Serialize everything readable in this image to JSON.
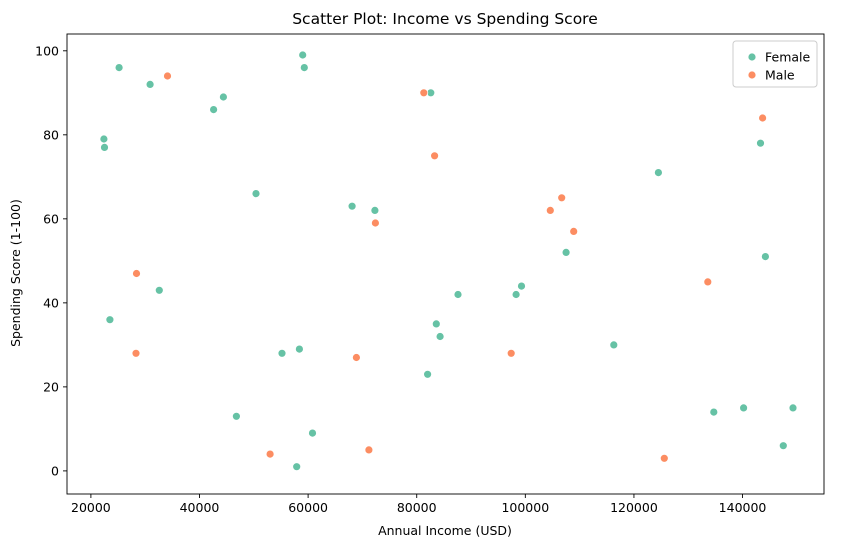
{
  "chart_data": {
    "type": "scatter",
    "title": "Scatter Plot: Income vs Spending Score",
    "xlabel": "Annual Income (USD)",
    "ylabel": "Spending Score (1-100)",
    "xlim": [
      15600,
      155000
    ],
    "ylim": [
      -5.5,
      104
    ],
    "xticks": [
      20000,
      40000,
      60000,
      80000,
      100000,
      120000,
      140000
    ],
    "xtick_labels": [
      "20000",
      "40000",
      "60000",
      "80000",
      "100000",
      "120000",
      "140000"
    ],
    "yticks": [
      0,
      20,
      40,
      60,
      80,
      100
    ],
    "ytick_labels": [
      "0",
      "20",
      "40",
      "60",
      "80",
      "100"
    ],
    "grid": false,
    "legend_position": "top-right",
    "series": [
      {
        "name": "Female",
        "color": "#66c2a5",
        "points": [
          [
            22400,
            79
          ],
          [
            22500,
            77
          ],
          [
            23500,
            36
          ],
          [
            25200,
            96
          ],
          [
            30900,
            92
          ],
          [
            32600,
            43
          ],
          [
            42600,
            86
          ],
          [
            44400,
            89
          ],
          [
            46800,
            13
          ],
          [
            50400,
            66
          ],
          [
            55200,
            28
          ],
          [
            57900,
            1
          ],
          [
            58400,
            29
          ],
          [
            59000,
            99
          ],
          [
            59300,
            96
          ],
          [
            60800,
            9
          ],
          [
            68100,
            63
          ],
          [
            72300,
            62
          ],
          [
            82000,
            23
          ],
          [
            82600,
            90
          ],
          [
            83600,
            35
          ],
          [
            84300,
            32
          ],
          [
            87600,
            42
          ],
          [
            98300,
            42
          ],
          [
            99300,
            44
          ],
          [
            107500,
            52
          ],
          [
            116300,
            30
          ],
          [
            124500,
            71
          ],
          [
            134700,
            14
          ],
          [
            140200,
            15
          ],
          [
            143300,
            78
          ],
          [
            144200,
            51
          ],
          [
            147500,
            6
          ],
          [
            149300,
            15
          ]
        ]
      },
      {
        "name": "Male",
        "color": "#fc8d62",
        "points": [
          [
            28300,
            28
          ],
          [
            28400,
            47
          ],
          [
            34100,
            94
          ],
          [
            53000,
            4
          ],
          [
            68900,
            27
          ],
          [
            71200,
            5
          ],
          [
            72400,
            59
          ],
          [
            81300,
            90
          ],
          [
            83300,
            75
          ],
          [
            97400,
            28
          ],
          [
            104600,
            62
          ],
          [
            106700,
            65
          ],
          [
            108900,
            57
          ],
          [
            125600,
            3
          ],
          [
            133600,
            45
          ],
          [
            143700,
            84
          ]
        ]
      }
    ]
  }
}
